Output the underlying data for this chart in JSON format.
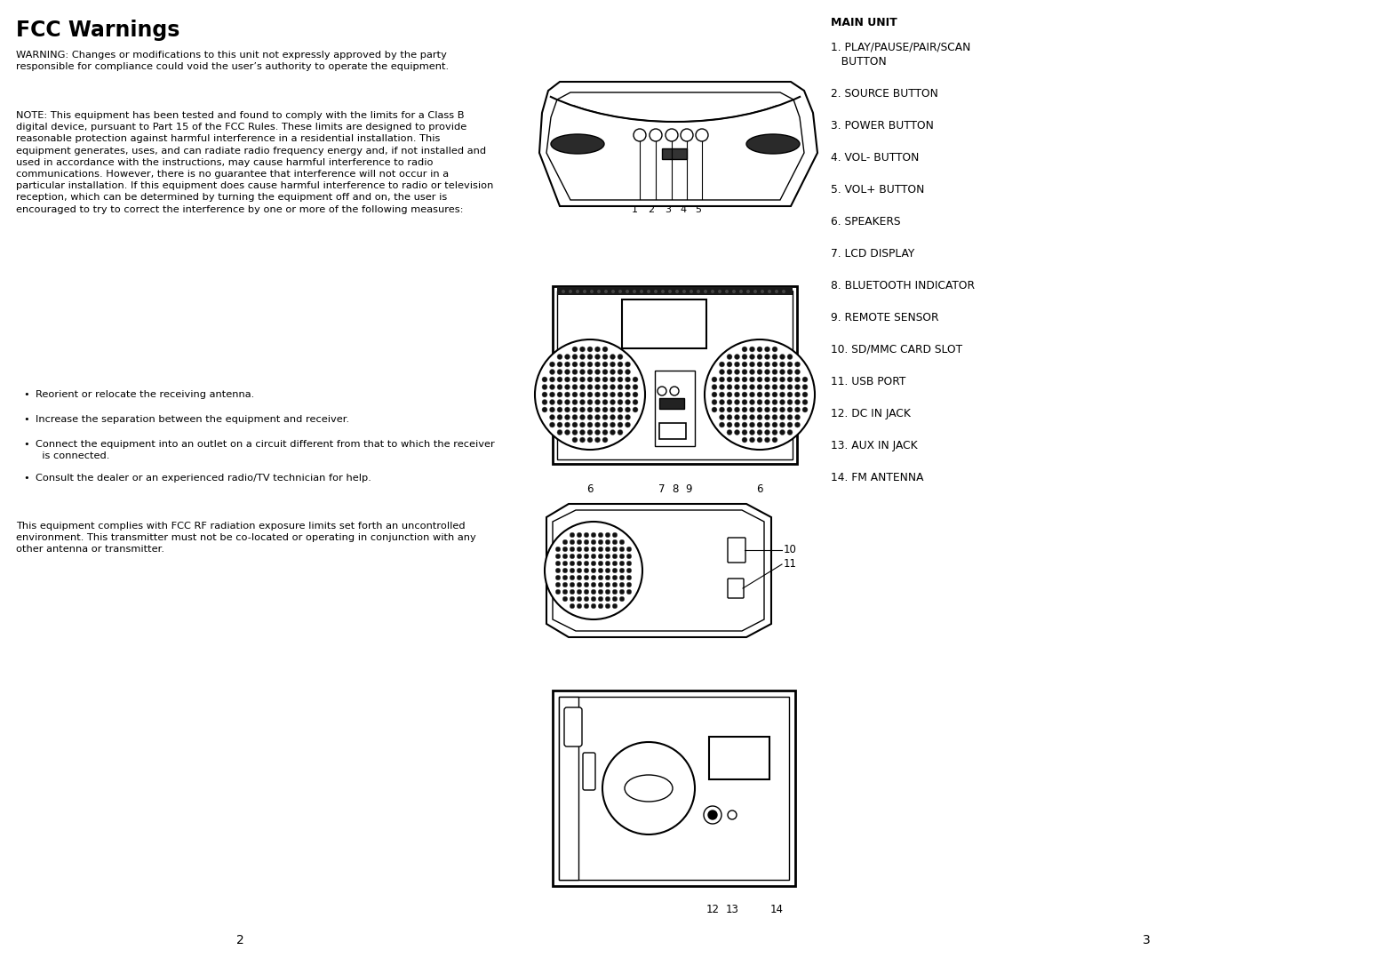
{
  "background_color": "#ffffff",
  "title": "FCC Warnings",
  "title_fontsize": 17,
  "title_fontweight": "bold",
  "body_fontsize": 8.2,
  "main_unit_title": "MAIN UNIT",
  "main_unit_fontsize": 9,
  "main_unit_fontweight": "bold",
  "item_fontsize": 8.8,
  "items": [
    "1. PLAY/PAUSE/PAIR/SCAN\n   BUTTON",
    "2. SOURCE BUTTON",
    "3. POWER BUTTON",
    "4. VOL- BUTTON",
    "5. VOL+ BUTTON",
    "6. SPEAKERS",
    "7. LCD DISPLAY",
    "8. BLUETOOTH INDICATOR",
    "9. REMOTE SENSOR",
    "10. SD/MMC CARD SLOT",
    "11. USB PORT",
    "12. DC IN JACK",
    "13. AUX IN JACK",
    "14. FM ANTENNA"
  ],
  "page_num_left": "2",
  "page_num_right": "3",
  "warning_text": "WARNING: Changes or modifications to this unit not expressly approved by the party\nresponsible for compliance could void the user’s authority to operate the equipment.",
  "note_text": "NOTE: This equipment has been tested and found to comply with the limits for a Class B\ndigital device, pursuant to Part 15 of the FCC Rules. These limits are designed to provide\nreasonable protection against harmful interference in a residential installation. This\nequipment generates, uses, and can radiate radio frequency energy and, if not installed and\nused in accordance with the instructions, may cause harmful interference to radio\ncommunications. However, there is no guarantee that interference will not occur in a\nparticular installation. If this equipment does cause harmful interference to radio or television\nreception, which can be determined by turning the equipment off and on, the user is\nencouraged to try to correct the interference by one or more of the following measures:",
  "bullets": [
    "Reorient or relocate the receiving antenna.",
    "Increase the separation between the equipment and receiver.",
    "Connect the equipment into an outlet on a circuit different from that to which the receiver\n  is connected.",
    "Consult the dealer or an experienced radio/TV technician for help."
  ],
  "fcc_rf_text": "This equipment complies with FCC RF radiation exposure limits set forth an uncontrolled\nenvironment. This transmitter must not be co-located or operating in conjunction with any\nother antenna or transmitter."
}
